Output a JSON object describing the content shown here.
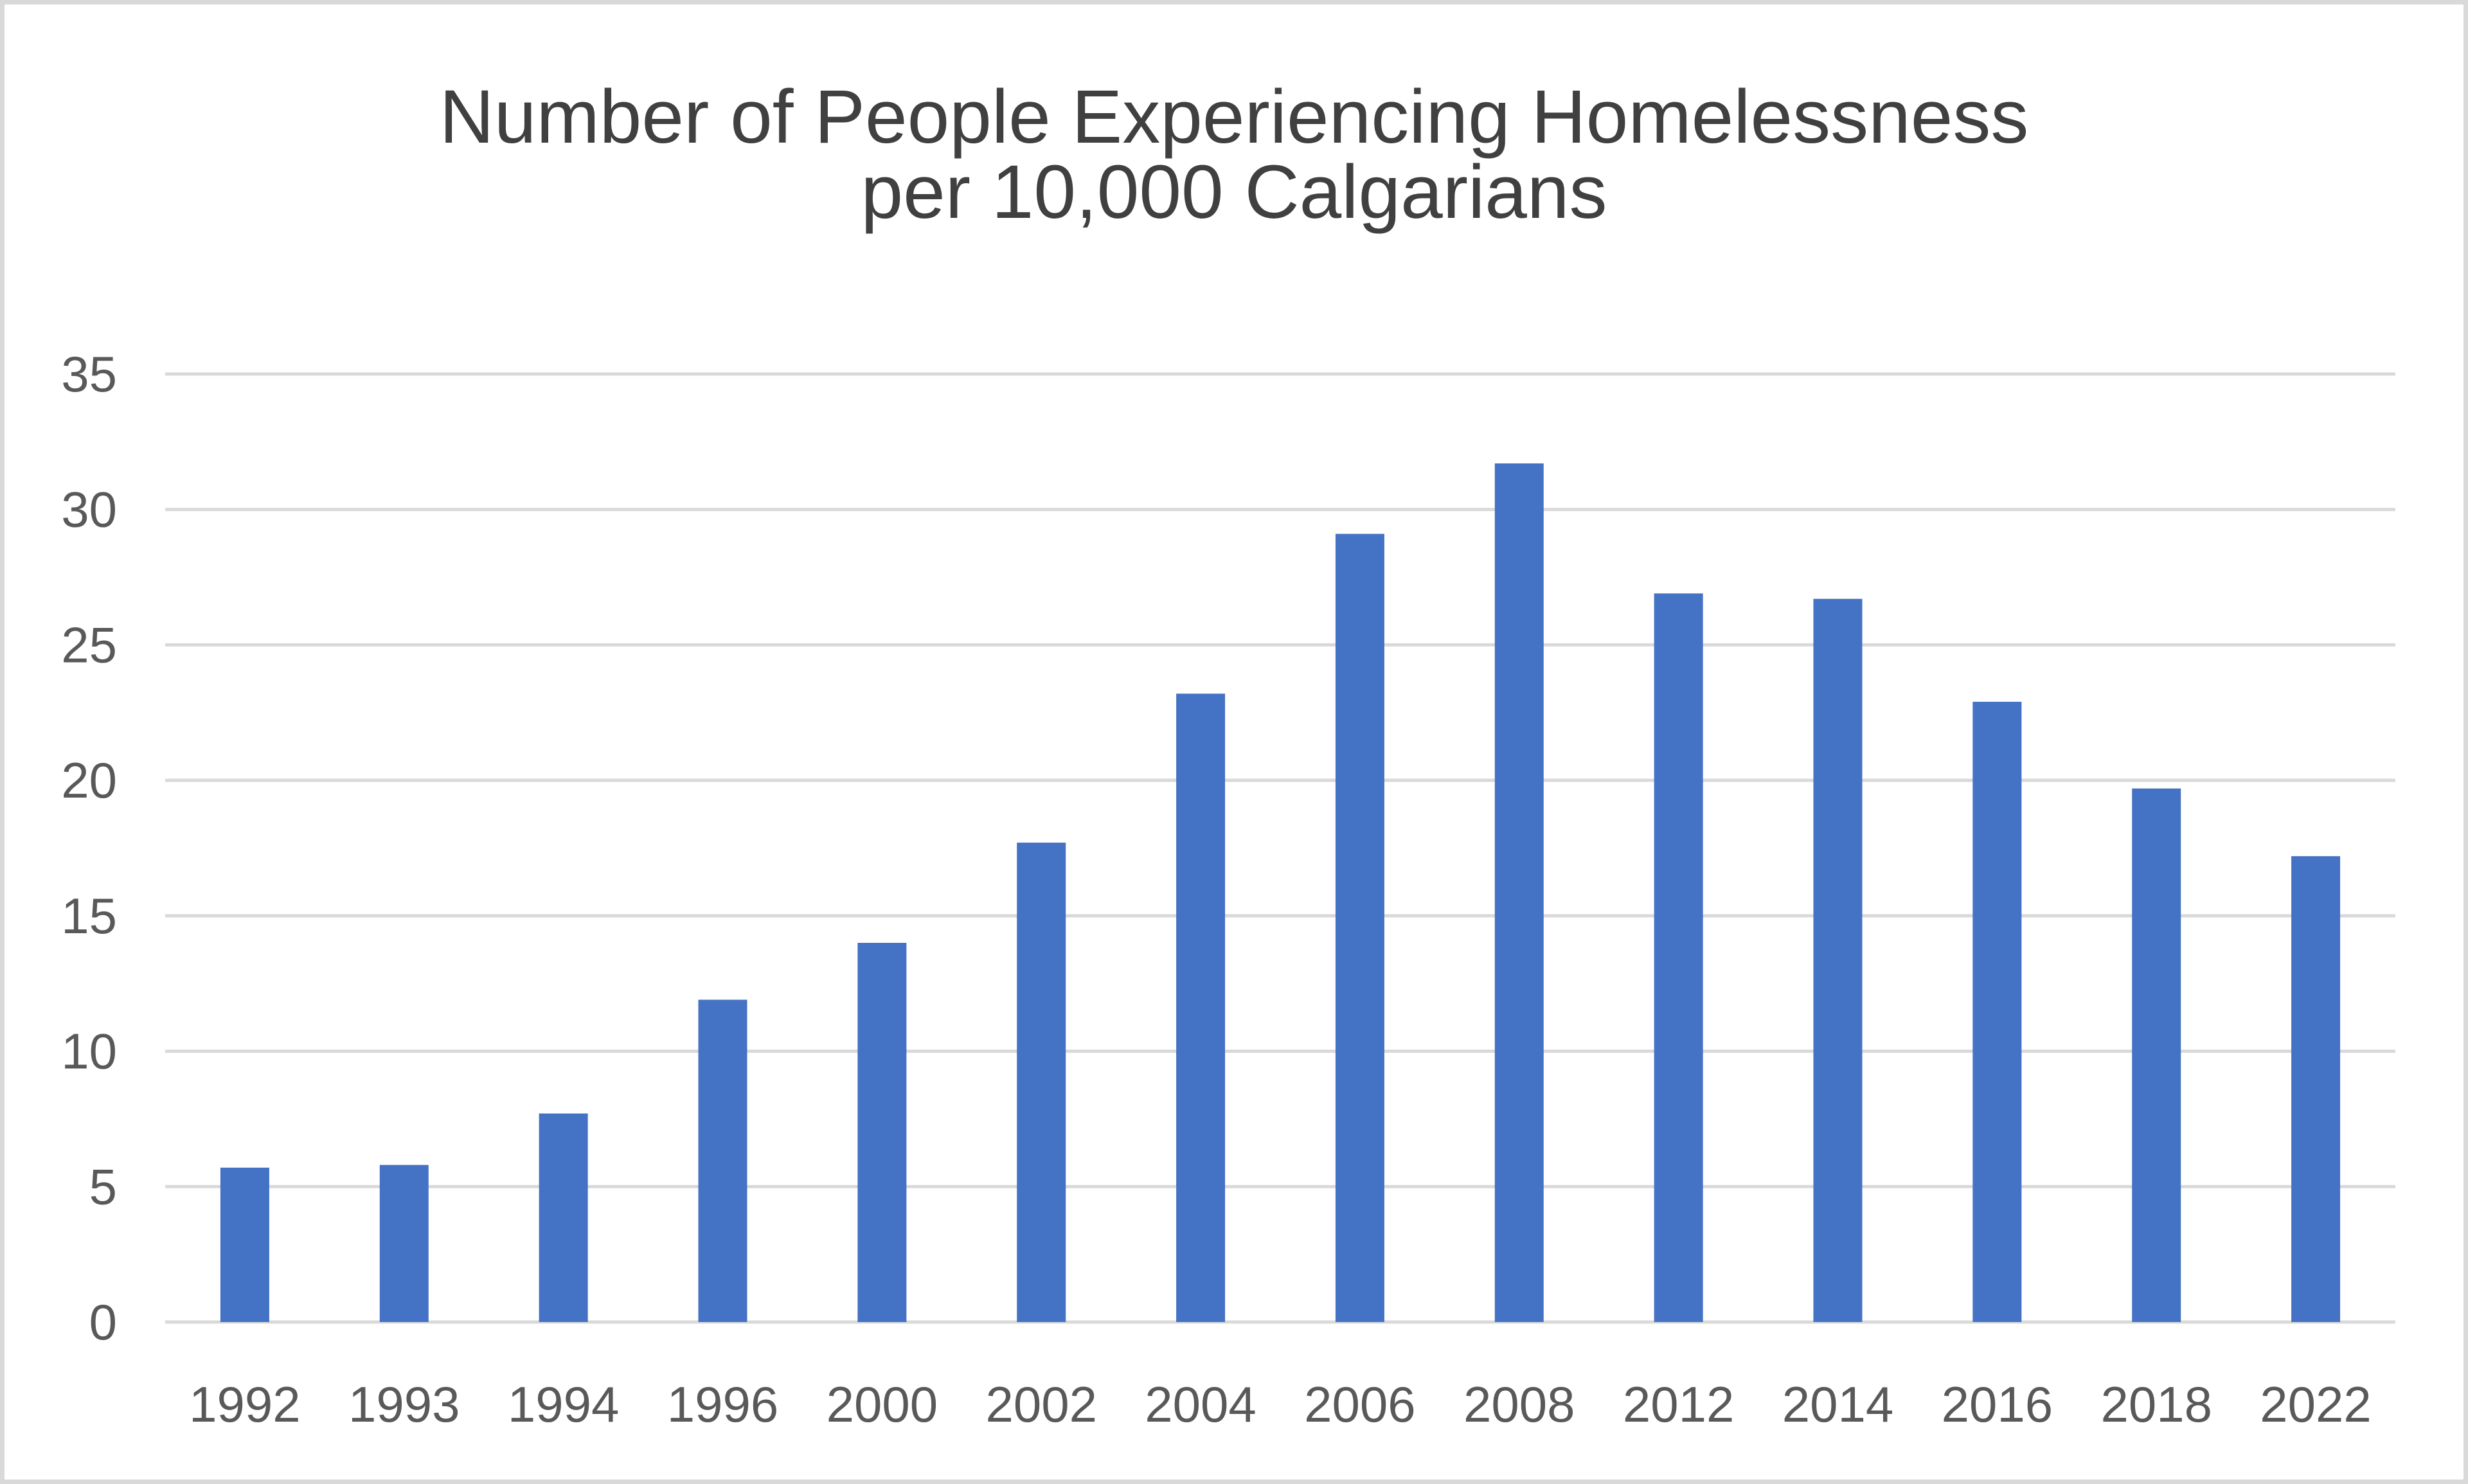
{
  "chart_data": {
    "type": "bar",
    "title": "Number of People Experiencing Homelessness per 10,000 Calgarians",
    "title_lines": [
      "Number of People Experiencing Homelessness",
      "per 10,000 Calgarians"
    ],
    "categories": [
      "1992",
      "1993",
      "1994",
      "1996",
      "2000",
      "2002",
      "2004",
      "2006",
      "2008",
      "2012",
      "2014",
      "2016",
      "2018",
      "2022"
    ],
    "values": [
      5.7,
      5.8,
      7.7,
      11.9,
      14.0,
      17.7,
      23.2,
      29.1,
      31.7,
      26.9,
      26.7,
      22.9,
      19.7,
      17.2
    ],
    "yticks": [
      0,
      5,
      10,
      15,
      20,
      25,
      30,
      35
    ],
    "ylim": [
      0,
      35
    ],
    "xlabel": "",
    "ylabel": "",
    "grid": true,
    "legend": "none",
    "bar_color": "#4472c4"
  }
}
